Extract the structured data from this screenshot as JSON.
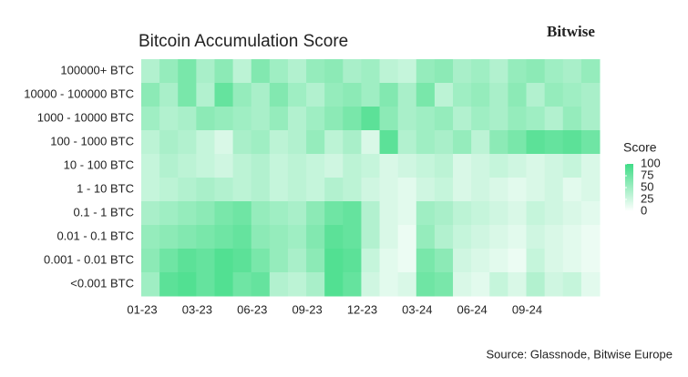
{
  "chart_data": {
    "type": "heatmap",
    "title": "Bitcoin Accumulation Score",
    "brand": "Bitwise",
    "source": "Source: Glassnode, Bitwise Europe",
    "rows": [
      "100000+ BTC",
      "10000 - 100000 BTC",
      "1000 - 10000 BTC",
      "100 - 1000 BTC",
      "10 - 100 BTC",
      "1 - 10 BTC",
      "0.1 - 1 BTC",
      "0.01 - 0.1 BTC",
      "0.001 - 0.01 BTC",
      "<0.001 BTC"
    ],
    "x": [
      0,
      1,
      2,
      3,
      4,
      5,
      6,
      7,
      8,
      9,
      10,
      11,
      12,
      13,
      14,
      15,
      16,
      17,
      18,
      19,
      20,
      21,
      22,
      23,
      24
    ],
    "xlim": [
      0,
      25
    ],
    "xticks": [
      {
        "value": 0,
        "label": "01-23"
      },
      {
        "value": 3,
        "label": "03-23"
      },
      {
        "value": 6,
        "label": "06-23"
      },
      {
        "value": 9,
        "label": "09-23"
      },
      {
        "value": 12,
        "label": "12-23"
      },
      {
        "value": 15,
        "label": "03-24"
      },
      {
        "value": 18,
        "label": "06-24"
      },
      {
        "value": 21,
        "label": "09-24"
      }
    ],
    "values": [
      [
        40,
        55,
        70,
        45,
        60,
        35,
        65,
        50,
        40,
        55,
        60,
        45,
        50,
        35,
        30,
        55,
        60,
        45,
        50,
        40,
        55,
        60,
        50,
        45,
        55
      ],
      [
        60,
        45,
        70,
        40,
        80,
        55,
        45,
        65,
        50,
        40,
        55,
        60,
        50,
        65,
        45,
        70,
        35,
        50,
        55,
        45,
        60,
        40,
        55,
        50,
        45
      ],
      [
        50,
        40,
        45,
        60,
        55,
        50,
        45,
        55,
        40,
        50,
        60,
        70,
        85,
        60,
        45,
        50,
        55,
        40,
        50,
        45,
        55,
        50,
        40,
        55,
        45
      ],
      [
        35,
        45,
        40,
        30,
        20,
        45,
        50,
        35,
        40,
        55,
        35,
        45,
        20,
        85,
        40,
        50,
        45,
        55,
        35,
        60,
        70,
        85,
        80,
        85,
        75
      ],
      [
        30,
        40,
        35,
        30,
        25,
        35,
        40,
        30,
        35,
        30,
        25,
        35,
        30,
        20,
        25,
        30,
        35,
        20,
        25,
        30,
        25,
        20,
        25,
        30,
        20
      ],
      [
        30,
        35,
        40,
        45,
        40,
        35,
        40,
        30,
        35,
        30,
        40,
        35,
        25,
        20,
        15,
        25,
        30,
        20,
        25,
        20,
        15,
        20,
        25,
        15,
        20
      ],
      [
        45,
        50,
        55,
        60,
        70,
        75,
        55,
        50,
        45,
        60,
        75,
        80,
        40,
        20,
        15,
        50,
        45,
        35,
        30,
        25,
        20,
        30,
        25,
        20,
        15
      ],
      [
        55,
        60,
        65,
        70,
        75,
        80,
        60,
        55,
        50,
        65,
        85,
        80,
        40,
        20,
        10,
        55,
        40,
        30,
        25,
        20,
        15,
        25,
        20,
        15,
        10
      ],
      [
        60,
        75,
        85,
        80,
        90,
        85,
        70,
        55,
        45,
        60,
        90,
        85,
        30,
        15,
        10,
        70,
        60,
        25,
        20,
        15,
        10,
        30,
        20,
        15,
        10
      ],
      [
        50,
        85,
        90,
        80,
        90,
        75,
        80,
        40,
        35,
        45,
        90,
        80,
        25,
        15,
        20,
        75,
        70,
        20,
        15,
        30,
        20,
        40,
        25,
        30,
        15
      ]
    ],
    "color": "#3fdc86",
    "legend_title": "Score",
    "clim": [
      0,
      100
    ],
    "cticks": [
      0,
      25,
      50,
      75,
      100
    ]
  }
}
